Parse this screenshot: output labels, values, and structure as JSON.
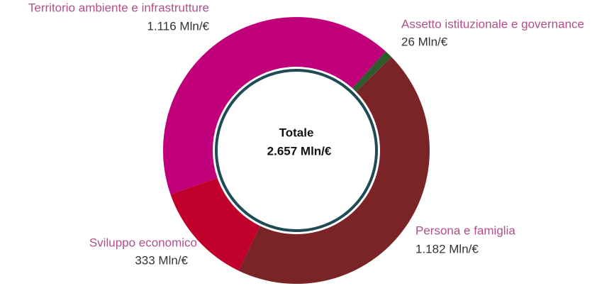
{
  "chart_data": {
    "type": "donut",
    "center_title": "Totale",
    "center_text": "2.657 Mln/€",
    "categories": [
      "Assetto istituzionale e governance",
      "Persona e famiglia",
      "Sviluppo economico",
      "Territorio ambiente e infrastrutture"
    ],
    "values": [
      26,
      1182,
      333,
      1116
    ],
    "value_labels": [
      "26 Mln/€",
      "1.182 Mln/€",
      "333 Mln/€",
      "1.116 Mln/€"
    ],
    "colors": [
      "#2e5a2c",
      "#7a2428",
      "#c0002a",
      "#c0007a"
    ]
  }
}
